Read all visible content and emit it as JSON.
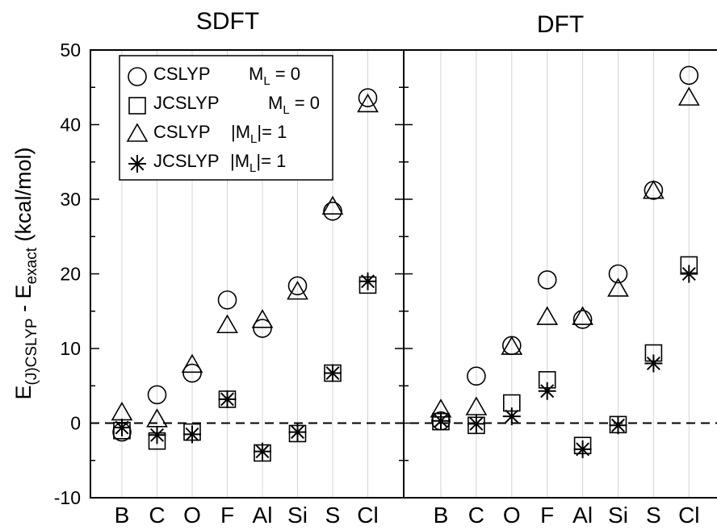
{
  "chart_data": {
    "type": "scatter",
    "ylabel": {
      "main": "E",
      "sub1": "(J)CSLYP",
      "mid": " - E",
      "sub2": "exact",
      "unit": " (kcal/mol)"
    },
    "ylim": [
      -10,
      50
    ],
    "yticks": [
      "-10",
      "0",
      "10",
      "20",
      "30",
      "40",
      "50"
    ],
    "categories": [
      "B",
      "C",
      "O",
      "F",
      "Al",
      "Si",
      "S",
      "Cl"
    ],
    "reference_line": 0,
    "grid": "vertical",
    "legend": {
      "placement": "top-left",
      "entries": [
        {
          "name": "CSLYP",
          "label": "M",
          "sub": "L",
          "rest": " = 0"
        },
        {
          "name": "JCSLYP",
          "label": "M",
          "sub": "L",
          "rest": " = 0"
        },
        {
          "name": "CSLYP",
          "label": "|M",
          "sub": "L",
          "rest": "|= 1"
        },
        {
          "name": "JCSLYP",
          "label": "|M",
          "sub": "L",
          "rest": "|= 1"
        }
      ]
    },
    "panels": [
      {
        "title": "SDFT",
        "series": [
          {
            "marker": "circle",
            "values": [
              -1.2,
              3.8,
              6.7,
              16.5,
              12.7,
              18.4,
              28.4,
              43.6
            ]
          },
          {
            "marker": "square",
            "values": [
              -1.0,
              -2.4,
              -1.2,
              3.2,
              -4.0,
              -1.4,
              6.7,
              18.5
            ]
          },
          {
            "marker": "triangle",
            "values": [
              1.3,
              0.4,
              7.7,
              13.0,
              13.7,
              17.5,
              28.9,
              42.6
            ]
          },
          {
            "marker": "star",
            "values": [
              -0.6,
              -1.6,
              -1.5,
              3.2,
              -3.8,
              -1.2,
              6.7,
              19.0
            ]
          }
        ]
      },
      {
        "title": "DFT",
        "series": [
          {
            "marker": "circle",
            "values": [
              0.3,
              6.3,
              10.4,
              19.2,
              13.9,
              20.0,
              31.2,
              46.6
            ]
          },
          {
            "marker": "square",
            "values": [
              0.2,
              -0.3,
              2.7,
              5.8,
              -3.0,
              -0.2,
              9.4,
              21.2
            ]
          },
          {
            "marker": "triangle",
            "values": [
              1.7,
              2.0,
              10.1,
              14.1,
              14.1,
              17.9,
              31.0,
              43.5
            ]
          },
          {
            "marker": "star",
            "values": [
              0.3,
              -0.1,
              0.9,
              4.3,
              -3.5,
              -0.3,
              8.0,
              20.0
            ]
          }
        ]
      }
    ]
  }
}
